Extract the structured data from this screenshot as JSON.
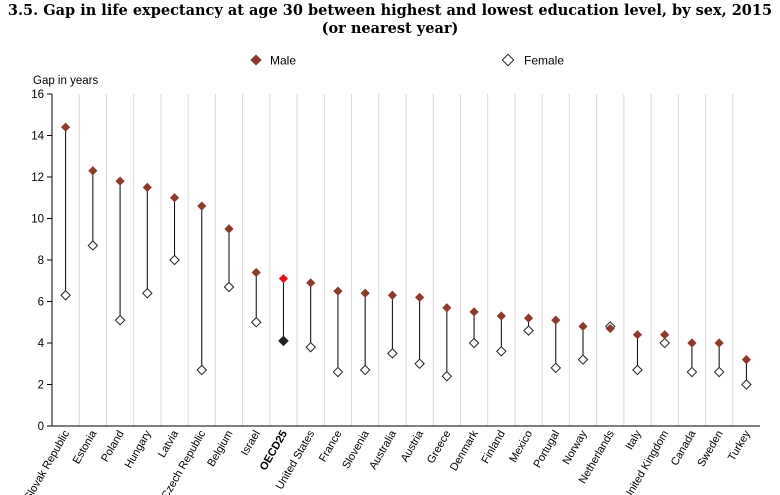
{
  "title_line1": "3.5. Gap in life expectancy at age 30 between highest and lowest education level, by sex, 2015",
  "title_line2": "(or nearest year)",
  "colors": {
    "male": "#8b3a2c",
    "male_highlight": "#e2101a",
    "female_highlight": "#222222",
    "female_fill": "#ffffff",
    "stem": "#000000"
  },
  "chart_data": {
    "type": "scatter",
    "subtype": "dot-range",
    "title": "3.5. Gap in life expectancy at age 30 between highest and lowest education level, by sex, 2015 (or nearest year)",
    "ylabel": "Gap in years",
    "xlabel": "",
    "ylim": [
      0,
      16
    ],
    "yticks": [
      0,
      2,
      4,
      6,
      8,
      10,
      12,
      14,
      16
    ],
    "legend": {
      "position": "top",
      "male_label": "Male",
      "female_label": "Female"
    },
    "highlight": "OECD25",
    "categories": [
      "Slovak Republic",
      "Estonia",
      "Poland",
      "Hungary",
      "Latvia",
      "Czech Republic",
      "Belgium",
      "Israel",
      "OECD25",
      "United States",
      "France",
      "Slovenia",
      "Australia",
      "Austria",
      "Greece",
      "Denmark",
      "Finland",
      "Mexico",
      "Portugal",
      "Norway",
      "Netherlands",
      "Italy",
      "United Kingdom",
      "Canada",
      "Sweden",
      "Turkey"
    ],
    "series": [
      {
        "name": "Male",
        "values": [
          14.4,
          12.3,
          11.8,
          11.5,
          11.0,
          10.6,
          9.5,
          7.4,
          7.1,
          6.9,
          6.5,
          6.4,
          6.3,
          6.2,
          5.7,
          5.5,
          5.3,
          5.2,
          5.1,
          4.8,
          4.7,
          4.4,
          4.4,
          4.0,
          4.0,
          3.2
        ]
      },
      {
        "name": "Female",
        "values": [
          6.3,
          8.7,
          5.1,
          6.4,
          8.0,
          2.7,
          6.7,
          5.0,
          4.1,
          3.8,
          2.6,
          2.7,
          3.5,
          3.0,
          2.4,
          4.0,
          3.6,
          4.6,
          2.8,
          3.2,
          4.8,
          2.7,
          4.0,
          2.6,
          2.6,
          2.0
        ]
      }
    ]
  }
}
